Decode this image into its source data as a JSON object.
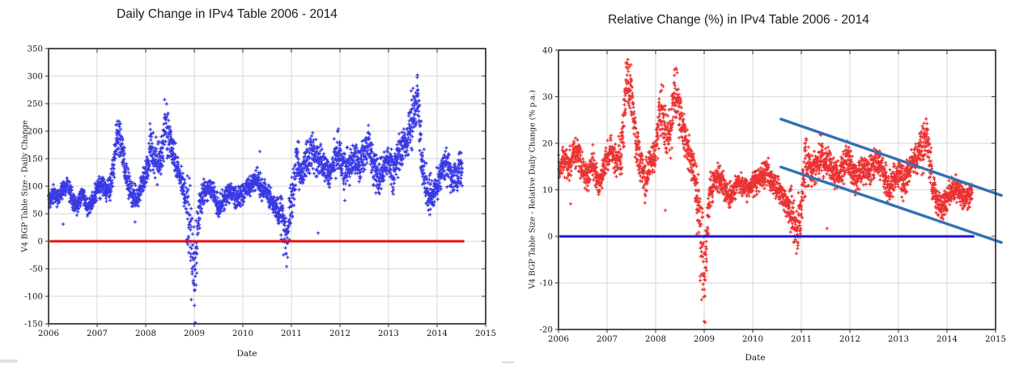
{
  "chart_data": [
    {
      "type": "scatter",
      "id": "daily-change",
      "title": "Daily Change in IPv4 Table 2006 - 2014",
      "xlabel": "Date",
      "ylabel": "V4 BGP Table Size - Daily Change",
      "x_range": [
        2006,
        2015
      ],
      "y_range": [
        -150,
        350
      ],
      "x_ticks": [
        2006,
        2007,
        2008,
        2009,
        2010,
        2011,
        2012,
        2013,
        2014,
        2015
      ],
      "y_ticks": [
        -150,
        -100,
        -50,
        0,
        50,
        100,
        150,
        200,
        250,
        300,
        350
      ],
      "grid": true,
      "legend": null,
      "marker": "plus",
      "point_color": "#1e1ee0",
      "data_start": 2006.0,
      "data_end": 2014.52,
      "anchors": {
        "start": 2006.0,
        "step": 0.1,
        "mean_spread": [
          [
            72,
            8
          ],
          [
            85,
            8
          ],
          [
            78,
            8
          ],
          [
            92,
            8
          ],
          [
            100,
            9
          ],
          [
            72,
            8
          ],
          [
            65,
            8
          ],
          [
            88,
            8
          ],
          [
            62,
            7
          ],
          [
            70,
            8
          ],
          [
            95,
            9
          ],
          [
            100,
            9
          ],
          [
            92,
            9
          ],
          [
            105,
            14
          ],
          [
            190,
            18
          ],
          [
            182,
            15
          ],
          [
            118,
            15
          ],
          [
            88,
            12
          ],
          [
            72,
            12
          ],
          [
            100,
            10
          ],
          [
            118,
            12
          ],
          [
            170,
            22
          ],
          [
            148,
            20
          ],
          [
            140,
            16
          ],
          [
            215,
            22
          ],
          [
            178,
            18
          ],
          [
            148,
            15
          ],
          [
            118,
            12
          ],
          [
            92,
            14
          ],
          [
            25,
            38
          ],
          [
            -70,
            42
          ],
          [
            60,
            18
          ],
          [
            90,
            10
          ],
          [
            100,
            10
          ],
          [
            85,
            9
          ],
          [
            62,
            10
          ],
          [
            75,
            9
          ],
          [
            92,
            9
          ],
          [
            85,
            9
          ],
          [
            78,
            9
          ],
          [
            88,
            9
          ],
          [
            96,
            10
          ],
          [
            106,
            10
          ],
          [
            112,
            12
          ],
          [
            96,
            10
          ],
          [
            88,
            10
          ],
          [
            70,
            10
          ],
          [
            55,
            10
          ],
          [
            42,
            22
          ],
          [
            2,
            26
          ],
          [
            70,
            20
          ],
          [
            140,
            26
          ],
          [
            122,
            15
          ],
          [
            140,
            15
          ],
          [
            162,
            18
          ],
          [
            150,
            15
          ],
          [
            142,
            15
          ],
          [
            128,
            13
          ],
          [
            125,
            13
          ],
          [
            155,
            18
          ],
          [
            165,
            18
          ],
          [
            120,
            20
          ],
          [
            140,
            16
          ],
          [
            150,
            15
          ],
          [
            140,
            15
          ],
          [
            160,
            16
          ],
          [
            175,
            16
          ],
          [
            130,
            18
          ],
          [
            110,
            16
          ],
          [
            130,
            14
          ],
          [
            150,
            15
          ],
          [
            125,
            18
          ],
          [
            155,
            16
          ],
          [
            170,
            16
          ],
          [
            185,
            18
          ],
          [
            235,
            30
          ],
          [
            252,
            28
          ],
          [
            135,
            25
          ],
          [
            92,
            20
          ],
          [
            80,
            15
          ],
          [
            105,
            15
          ],
          [
            128,
            15
          ],
          [
            142,
            18
          ],
          [
            118,
            15
          ],
          [
            115,
            15
          ],
          [
            132,
            15
          ]
        ]
      },
      "outliers": [
        [
          2006.3,
          31
        ],
        [
          2007.78,
          35
        ],
        [
          2008.85,
          3
        ],
        [
          2009.02,
          -148
        ],
        [
          2010.35,
          163
        ],
        [
          2011.55,
          15
        ]
      ],
      "zero_line": {
        "y": 0,
        "x1": 2006.02,
        "x2": 2014.56,
        "color": "#e51212",
        "width": 3
      },
      "trend_lines": []
    },
    {
      "type": "scatter",
      "id": "relative-change",
      "title": "Relative Change (%) in IPv4 Table 2006 - 2014",
      "xlabel": "Date",
      "ylabel": "V4 BGP Table Size - Relative Daily Change (% p.a.)",
      "x_range": [
        2006,
        2015
      ],
      "y_range": [
        -20,
        40
      ],
      "x_ticks": [
        2006,
        2007,
        2008,
        2009,
        2010,
        2011,
        2012,
        2013,
        2014,
        2015
      ],
      "y_ticks": [
        -20,
        -10,
        0,
        10,
        20,
        30,
        40
      ],
      "grid": true,
      "legend": null,
      "marker": "plus",
      "point_color": "#e81414",
      "data_start": 2006.0,
      "data_end": 2014.52,
      "anchors": {
        "start": 2006.0,
        "step": 0.1,
        "mean_spread": [
          [
            14.5,
            1.5
          ],
          [
            16.5,
            1.5
          ],
          [
            15.0,
            1.5
          ],
          [
            17.5,
            1.5
          ],
          [
            18.5,
            1.7
          ],
          [
            14.0,
            1.5
          ],
          [
            12.8,
            1.5
          ],
          [
            16.5,
            1.5
          ],
          [
            12.0,
            1.4
          ],
          [
            13.5,
            1.5
          ],
          [
            17.5,
            1.6
          ],
          [
            18.0,
            1.6
          ],
          [
            16.5,
            1.6
          ],
          [
            18.5,
            2.4
          ],
          [
            33.0,
            2.6
          ],
          [
            31.0,
            2.4
          ],
          [
            20.0,
            2.4
          ],
          [
            15.0,
            2.0
          ],
          [
            12.5,
            2.0
          ],
          [
            16.5,
            1.7
          ],
          [
            19.0,
            2.0
          ],
          [
            27.0,
            3.4
          ],
          [
            23.0,
            3.0
          ],
          [
            21.5,
            2.4
          ],
          [
            32.0,
            3.0
          ],
          [
            26.5,
            2.6
          ],
          [
            22.0,
            2.2
          ],
          [
            17.5,
            1.8
          ],
          [
            13.5,
            2.0
          ],
          [
            3.5,
            5.2
          ],
          [
            -10.0,
            5.6
          ],
          [
            8.0,
            2.2
          ],
          [
            12.0,
            1.4
          ],
          [
            13.0,
            1.4
          ],
          [
            11.0,
            1.2
          ],
          [
            8.2,
            1.3
          ],
          [
            9.8,
            1.2
          ],
          [
            12.0,
            1.2
          ],
          [
            11.0,
            1.2
          ],
          [
            10.0,
            1.2
          ],
          [
            11.2,
            1.2
          ],
          [
            12.2,
            1.3
          ],
          [
            13.2,
            1.3
          ],
          [
            13.8,
            1.5
          ],
          [
            11.8,
            1.3
          ],
          [
            10.8,
            1.2
          ],
          [
            8.5,
            1.2
          ],
          [
            6.8,
            1.2
          ],
          [
            5.0,
            2.6
          ],
          [
            0.3,
            3.1
          ],
          [
            8.0,
            2.4
          ],
          [
            15.8,
            3.0
          ],
          [
            13.8,
            1.7
          ],
          [
            15.5,
            1.7
          ],
          [
            17.5,
            2.0
          ],
          [
            16.2,
            1.7
          ],
          [
            15.2,
            1.6
          ],
          [
            13.6,
            1.5
          ],
          [
            13.2,
            1.4
          ],
          [
            16.0,
            1.8
          ],
          [
            16.8,
            1.8
          ],
          [
            12.0,
            2.0
          ],
          [
            13.8,
            1.6
          ],
          [
            14.8,
            1.5
          ],
          [
            13.8,
            1.5
          ],
          [
            15.5,
            1.6
          ],
          [
            16.8,
            1.6
          ],
          [
            12.5,
            1.8
          ],
          [
            10.5,
            1.6
          ],
          [
            12.2,
            1.4
          ],
          [
            14.0,
            1.5
          ],
          [
            11.5,
            1.7
          ],
          [
            14.2,
            1.5
          ],
          [
            15.5,
            1.5
          ],
          [
            16.5,
            1.7
          ],
          [
            19.5,
            2.6
          ],
          [
            20.5,
            2.4
          ],
          [
            11.0,
            2.2
          ],
          [
            7.2,
            1.7
          ],
          [
            6.2,
            1.3
          ],
          [
            8.2,
            1.3
          ],
          [
            9.8,
            1.3
          ],
          [
            10.8,
            1.5
          ],
          [
            8.8,
            1.3
          ],
          [
            8.5,
            1.3
          ],
          [
            9.8,
            1.3
          ]
        ]
      },
      "outliers": [
        [
          2006.25,
          7.0
        ],
        [
          2007.78,
          7.2
        ],
        [
          2008.2,
          5.6
        ],
        [
          2008.85,
          0.5
        ],
        [
          2009.02,
          -18.5
        ],
        [
          2011.53,
          1.7
        ]
      ],
      "zero_line": {
        "y": 0,
        "x1": 2006.02,
        "x2": 2014.56,
        "color": "#1717d6",
        "width": 3
      },
      "trend_lines": [
        {
          "x1": 2010.58,
          "y1": 25.2,
          "x2": 2015.12,
          "y2": 8.8,
          "color": "#3470b4",
          "width": 3.4
        },
        {
          "x1": 2010.58,
          "y1": 14.9,
          "x2": 2015.12,
          "y2": -1.3,
          "color": "#3470b4",
          "width": 3.4
        }
      ]
    }
  ],
  "style": {
    "grid_color": "#d6d6d6",
    "spine_color": "#2e2e2e",
    "tick_label_color": "#141414"
  }
}
